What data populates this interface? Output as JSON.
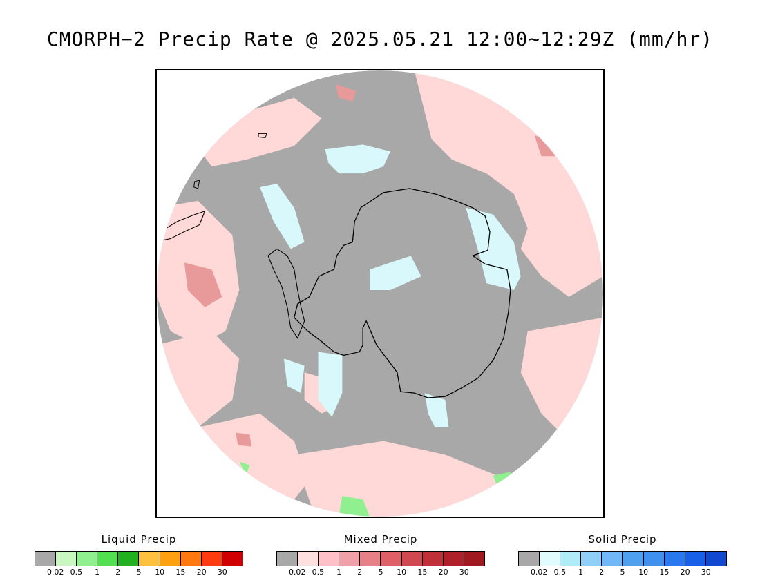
{
  "title": "CMORPH−2 Precip Rate @ 2025.05.21 12:00~12:29Z (mm/hr)",
  "map": {
    "projection": "south-polar-stereographic",
    "background_color": "#a8a8a8",
    "coastline_color": "#000000",
    "regions": [
      {
        "name": "mixed-precip-light",
        "color": "#ffd8d8"
      },
      {
        "name": "solid-precip-light",
        "color": "#d8f8fc"
      },
      {
        "name": "mixed-precip-moderate",
        "color": "#e89a9a"
      },
      {
        "name": "liquid-precip-light",
        "color": "#90f090"
      }
    ]
  },
  "legends": [
    {
      "title": "Liquid Precip",
      "colors": [
        "#a8a8a8",
        "#c8f8c0",
        "#90f090",
        "#50e050",
        "#20b020",
        "#ffc040",
        "#ffa010",
        "#ff7810",
        "#ff3c10",
        "#d00000"
      ],
      "ticks": [
        "0.02",
        "0.5",
        "1",
        "2",
        "5",
        "10",
        "15",
        "20",
        "30"
      ]
    },
    {
      "title": "Mixed Precip",
      "colors": [
        "#a8a8a8",
        "#ffe0e0",
        "#ffc0c8",
        "#f0a0a8",
        "#e88088",
        "#e06068",
        "#d04850",
        "#c03038",
        "#b02028",
        "#a01820"
      ],
      "ticks": [
        "0.02",
        "0.5",
        "1",
        "2",
        "5",
        "10",
        "15",
        "20",
        "30"
      ]
    },
    {
      "title": "Solid Precip",
      "colors": [
        "#a8a8a8",
        "#e0fcfc",
        "#b0ecf8",
        "#90d0f8",
        "#70b8f8",
        "#50a0f0",
        "#4090f0",
        "#2878f0",
        "#1860e8",
        "#1048d0"
      ],
      "ticks": [
        "0.02",
        "0.5",
        "1",
        "2",
        "5",
        "10",
        "15",
        "20",
        "30"
      ]
    }
  ]
}
